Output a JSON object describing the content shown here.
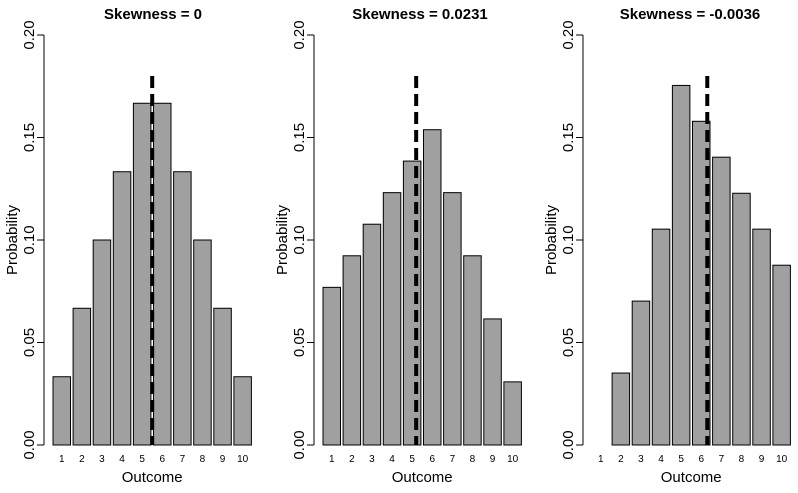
{
  "chart_data": [
    {
      "type": "bar",
      "title": "Skewness = 0",
      "xlabel": "Outcome",
      "ylabel": "Probability",
      "categories": [
        "1",
        "2",
        "3",
        "4",
        "5",
        "6",
        "7",
        "8",
        "9",
        "10"
      ],
      "values": [
        0.0333,
        0.0667,
        0.1,
        0.1333,
        0.1667,
        0.1667,
        0.1333,
        0.1,
        0.0667,
        0.0333
      ],
      "mean_line": 5.5,
      "ylim": [
        0,
        0.2
      ],
      "yticks": [
        "0.00",
        "0.05",
        "0.10",
        "0.15",
        "0.20"
      ],
      "bar_color": "#a0a0a0",
      "mean_line_color": "#000000"
    },
    {
      "type": "bar",
      "title": "Skewness = 0.0231",
      "xlabel": "Outcome",
      "ylabel": "Probability",
      "categories": [
        "1",
        "2",
        "3",
        "4",
        "5",
        "6",
        "7",
        "8",
        "9",
        "10"
      ],
      "values": [
        0.0769,
        0.0923,
        0.1077,
        0.1231,
        0.1385,
        0.1538,
        0.1231,
        0.0923,
        0.0615,
        0.0308
      ],
      "mean_line": 5.2,
      "ylim": [
        0,
        0.2
      ],
      "yticks": [
        "0.00",
        "0.05",
        "0.10",
        "0.15",
        "0.20"
      ],
      "bar_color": "#a0a0a0",
      "mean_line_color": "#000000"
    },
    {
      "type": "bar",
      "title": "Skewness = -0.0036",
      "xlabel": "Outcome",
      "ylabel": "Probability",
      "categories": [
        "1",
        "2",
        "3",
        "4",
        "5",
        "6",
        "7",
        "8",
        "9",
        "10"
      ],
      "values": [
        0.0,
        0.0351,
        0.0702,
        0.1053,
        0.1754,
        0.1579,
        0.1404,
        0.1228,
        0.1053,
        0.0877
      ],
      "mean_line": 6.3,
      "ylim": [
        0,
        0.2
      ],
      "yticks": [
        "0.00",
        "0.05",
        "0.10",
        "0.15",
        "0.20"
      ],
      "bar_color": "#a0a0a0",
      "mean_line_color": "#000000"
    }
  ]
}
